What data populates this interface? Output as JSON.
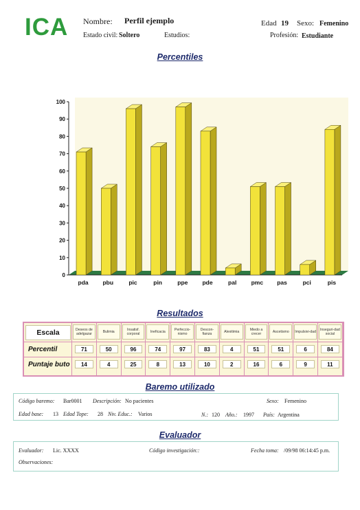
{
  "header": {
    "logo": "ICA",
    "nombre_label": "Nombre:",
    "nombre_value": "Perfil ejemplo",
    "edad_label": "Edad",
    "edad_value": "19",
    "sexo_label": "Sexo:",
    "sexo_value": "Femenino",
    "estado_label": "Estado civil:",
    "estado_value": "Soltero",
    "estudios_label": "Estudios:",
    "estudios_value": "",
    "profesion_label": "Profesión:",
    "profesion_value": "Estudiante"
  },
  "sections": {
    "percentiles": "Percentiles",
    "resultados": "Resultados",
    "baremo": "Baremo utilizado",
    "evaluador": "Evaluador"
  },
  "chart_data": {
    "type": "bar",
    "categories": [
      "pda",
      "pbu",
      "pic",
      "pin",
      "ppe",
      "pde",
      "pal",
      "pmc",
      "pas",
      "pci",
      "pis"
    ],
    "values": [
      71,
      50,
      96,
      74,
      97,
      83,
      4,
      51,
      51,
      6,
      84
    ],
    "ylim": [
      0,
      100
    ],
    "yticks": [
      0,
      10,
      20,
      30,
      40,
      50,
      60,
      70,
      80,
      90,
      100
    ],
    "grid": false,
    "bar_color": "#f2e23a",
    "bar_side_color": "#b9a81d",
    "floor_color": "#2d7a43"
  },
  "results": {
    "escala_label": "Escala",
    "columns": [
      "Deseos de adelgazar",
      "Bulimia",
      "Insatisf. corporal",
      "Ineficacia",
      "Perfeccio-nismo",
      "Descon-fianza",
      "Alexitimia",
      "Miedo a crecer",
      "Ascetismo",
      "Impulsivi-dad",
      "Inseguri-dad social"
    ],
    "rows": [
      {
        "label": "Percentil",
        "values": [
          "71",
          "50",
          "96",
          "74",
          "97",
          "83",
          "4",
          "51",
          "51",
          "6",
          "84"
        ]
      },
      {
        "label": "Puntaje buto",
        "values": [
          "14",
          "4",
          "25",
          "8",
          "13",
          "10",
          "2",
          "16",
          "6",
          "9",
          "11"
        ]
      }
    ]
  },
  "baremo": {
    "codigo_label": "Código baremo:",
    "codigo_value": "Bar0001",
    "descripcion_label": "Descripción:",
    "descripcion_value": "No pacientes",
    "sexo_label": "Sexo:",
    "sexo_value": "Femenino",
    "edad_base_label": "Edad base:",
    "edad_base_value": "13",
    "edad_tope_label": "Edad Tope:",
    "edad_tope_value": "28",
    "niv_label": "Niv. Educ.:",
    "niv_value": "Varios",
    "n_label": "N.:",
    "n_value": "120",
    "anio_label": "Año.:",
    "anio_value": "1997",
    "pais_label": "País:",
    "pais_value": "Argentina"
  },
  "evaluador": {
    "evaluador_label": "Evaluador:",
    "evaluador_value": "Lic. XXXX",
    "codigo_label": "Código investigación::",
    "codigo_value": "",
    "fecha_label": "Fecha toma:",
    "fecha_value": "/09/98 06:14:45 p.m.",
    "observaciones_label": "Observaciones:",
    "observaciones_value": ""
  }
}
